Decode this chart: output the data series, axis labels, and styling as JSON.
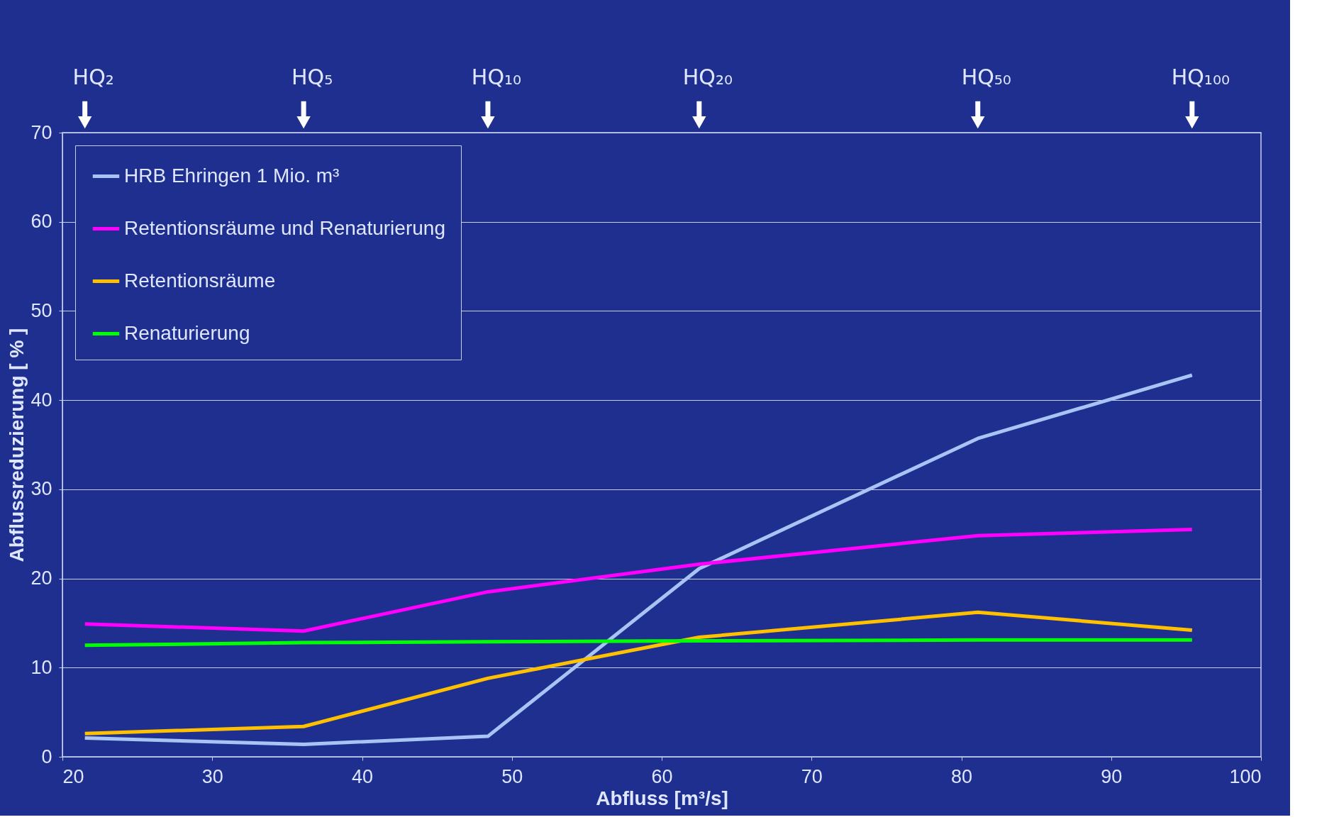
{
  "chart_data": {
    "type": "line",
    "xlabel": "Abfluss [m³/s]",
    "ylabel": "Abflussreduzierung [ % ]",
    "x": [
      21.5,
      36.1,
      48.4,
      62.5,
      81.1,
      95.4
    ],
    "series": [
      {
        "name": "HRB Ehringen 1 Mio. m³",
        "color": "#a8c4f4",
        "values": [
          2.1,
          1.4,
          2.3,
          21.1,
          35.7,
          42.8
        ]
      },
      {
        "name": "Retentionsräume und Renaturierung",
        "color": "#ff00ff",
        "values": [
          14.9,
          14.1,
          18.5,
          21.6,
          24.8,
          25.5
        ]
      },
      {
        "name": "Retentionsräume",
        "color": "#ffc000",
        "values": [
          2.6,
          3.4,
          8.8,
          13.4,
          16.2,
          14.2
        ]
      },
      {
        "name": "Renaturierung",
        "color": "#00ff00",
        "values": [
          12.5,
          12.8,
          12.9,
          13.0,
          13.1,
          13.1
        ]
      }
    ],
    "xlim": [
      20,
      100
    ],
    "xticks": [
      20,
      30,
      40,
      50,
      60,
      70,
      80,
      90,
      100
    ],
    "ylim": [
      0,
      70
    ],
    "yticks": [
      0,
      10,
      20,
      30,
      40,
      50,
      60,
      70
    ],
    "grid": "y",
    "legend": "top left",
    "marker": "none",
    "line_style": "solid",
    "annotations": [
      "HQ₂",
      "HQ₅",
      "HQ₁₀",
      "HQ₂₀",
      "HQ₅₀",
      "HQ₁₀₀"
    ]
  }
}
